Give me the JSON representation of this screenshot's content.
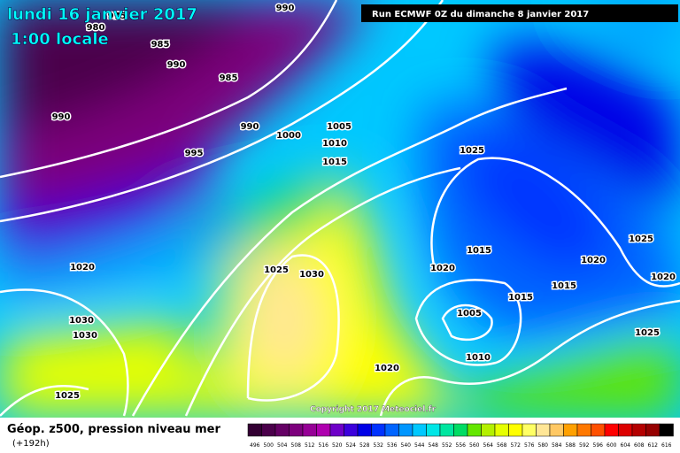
{
  "header": {
    "date": "lundi 16 janvier 2017",
    "time": "1:00 locale",
    "run": "Run ECMWF 0Z du dimanche 8 janvier 2017"
  },
  "footer": {
    "title": "Géop. z500, pression niveau mer",
    "lead": "(+192h)",
    "copyright": "Copyright 2017 Meteociel.fr"
  },
  "isobar_labels": [
    "990",
    "980",
    "975",
    "985",
    "990",
    "985",
    "990",
    "990",
    "1000",
    "1005",
    "1010",
    "1015",
    "995",
    "1025",
    "1020",
    "1025",
    "1030",
    "1015",
    "1020",
    "1020",
    "1025",
    "1015",
    "1015",
    "1020",
    "1005",
    "1030",
    "1030",
    "1010",
    "1020",
    "1025",
    "1025"
  ],
  "scale": {
    "values": [
      496,
      500,
      504,
      508,
      512,
      516,
      520,
      524,
      528,
      532,
      536,
      540,
      544,
      548,
      552,
      556,
      560,
      564,
      568,
      572,
      576,
      580,
      584,
      588,
      592,
      596,
      600,
      604,
      608,
      612,
      616
    ],
    "colors": [
      "#330033",
      "#4b004b",
      "#640064",
      "#7d007d",
      "#960096",
      "#af00af",
      "#6e00c8",
      "#3c00dc",
      "#0000e6",
      "#0032ff",
      "#0064ff",
      "#0096ff",
      "#00c8ff",
      "#00e6e6",
      "#00e6a0",
      "#00dc64",
      "#64e600",
      "#b4f000",
      "#e6ff00",
      "#ffff00",
      "#ffff64",
      "#ffe696",
      "#ffc864",
      "#ffa000",
      "#ff7800",
      "#ff5000",
      "#ff0000",
      "#dc0000",
      "#b40000",
      "#960000",
      "#000000"
    ]
  }
}
